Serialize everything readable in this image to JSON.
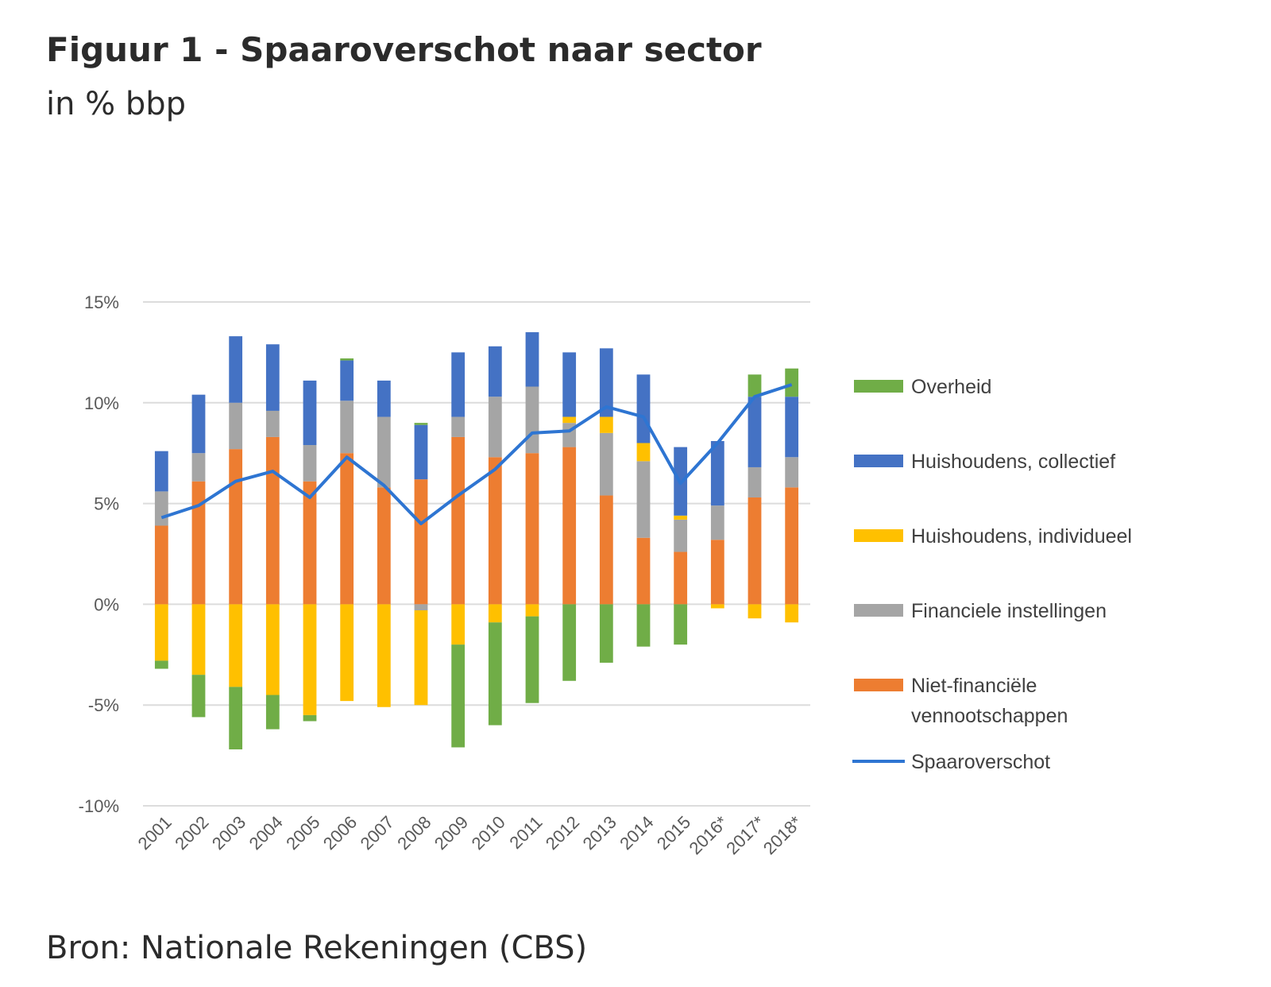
{
  "figure": {
    "title": "Figuur 1 - Spaaroverschot naar sector",
    "subtitle": "in % bbp",
    "source": "Bron: Nationale Rekeningen (CBS)"
  },
  "chart_data": {
    "type": "bar",
    "stacked": true,
    "categories": [
      "2001",
      "2002",
      "2003",
      "2004",
      "2005",
      "2006",
      "2007",
      "2008",
      "2009",
      "2010",
      "2011",
      "2012",
      "2013",
      "2014",
      "2015",
      "2016*",
      "2017*",
      "2018*"
    ],
    "ylim": [
      -10,
      15
    ],
    "yticks": [
      15,
      10,
      5,
      0,
      -5,
      -10
    ],
    "ytick_labels": [
      "15%",
      "10%",
      "5%",
      "0%",
      "-5%",
      "-10%"
    ],
    "grid": true,
    "legend_position": "right",
    "series": [
      {
        "name": "Niet-financiële vennootschappen",
        "legend_lines": [
          "Niet-financiële",
          "vennootschappen"
        ],
        "color": "#ED7D31",
        "values": [
          3.9,
          6.1,
          7.7,
          8.3,
          6.1,
          7.5,
          5.8,
          6.2,
          8.3,
          7.3,
          7.5,
          7.8,
          5.4,
          3.3,
          2.6,
          3.2,
          5.3,
          5.8
        ]
      },
      {
        "name": "Financiele instellingen",
        "color": "#A5A5A5",
        "values": [
          1.7,
          1.4,
          2.3,
          1.3,
          1.8,
          2.6,
          3.5,
          -0.3,
          1.0,
          3.0,
          3.3,
          1.2,
          3.1,
          3.8,
          1.6,
          1.7,
          1.5,
          1.5
        ]
      },
      {
        "name": "Huishoudens, individueel",
        "color": "#FFC000",
        "values": [
          -2.8,
          -3.5,
          -4.1,
          -4.5,
          -5.5,
          -4.8,
          -5.1,
          -4.7,
          -2.0,
          -0.9,
          -0.6,
          0.3,
          0.8,
          0.9,
          0.2,
          -0.2,
          -0.7,
          -0.9
        ]
      },
      {
        "name": "Huishoudens, collectief",
        "color": "#4472C4",
        "values": [
          2.0,
          2.9,
          3.3,
          3.3,
          3.2,
          2.0,
          1.8,
          2.7,
          3.2,
          2.5,
          2.7,
          3.2,
          3.4,
          3.4,
          3.4,
          3.2,
          3.5,
          3.0
        ]
      },
      {
        "name": "Overheid",
        "color": "#70AD47",
        "values": [
          -0.4,
          -2.1,
          -3.1,
          -1.7,
          -0.3,
          0.1,
          0.0,
          0.1,
          -5.1,
          -5.1,
          -4.3,
          -3.8,
          -2.9,
          -2.1,
          -2.0,
          0.0,
          1.1,
          1.4
        ]
      }
    ],
    "line": {
      "name": "Spaaroverschot",
      "color": "#2E75D2",
      "values": [
        4.3,
        4.9,
        6.1,
        6.6,
        5.3,
        7.3,
        5.9,
        4.0,
        5.4,
        6.7,
        8.5,
        8.6,
        9.8,
        9.3,
        6.0,
        8.0,
        10.3,
        10.9
      ]
    }
  }
}
